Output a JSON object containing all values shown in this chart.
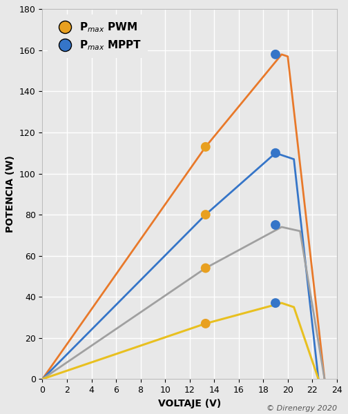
{
  "title": "",
  "xlabel": "VOLTAJE (V)",
  "ylabel": "POTENCIA (W)",
  "xlim": [
    0,
    24
  ],
  "ylim": [
    0,
    180
  ],
  "xticks": [
    0,
    2,
    4,
    6,
    8,
    10,
    12,
    14,
    16,
    18,
    20,
    22,
    24
  ],
  "yticks": [
    0,
    20,
    40,
    60,
    80,
    100,
    120,
    140,
    160,
    180
  ],
  "background_color": "#e8e8e8",
  "axes_facecolor": "#e8e8e8",
  "grid_color": "#ffffff",
  "curve_orange": {
    "x": [
      0,
      13.3,
      19.5,
      20.0,
      23.0
    ],
    "y": [
      0,
      113,
      158,
      157,
      0
    ],
    "color": "#e8792a",
    "linewidth": 2.0
  },
  "curve_blue": {
    "x": [
      0,
      13.3,
      19.0,
      20.5,
      22.5
    ],
    "y": [
      0,
      80,
      110,
      107,
      0
    ],
    "color": "#3575c8",
    "linewidth": 2.0
  },
  "curve_gray": {
    "x": [
      0,
      13.3,
      19.5,
      21.0,
      23.0
    ],
    "y": [
      0,
      54,
      74,
      72,
      0
    ],
    "color": "#a0a0a0",
    "linewidth": 2.0
  },
  "curve_yellow": {
    "x": [
      0,
      13.3,
      19.5,
      20.5,
      22.5
    ],
    "y": [
      0,
      27,
      37,
      35,
      0
    ],
    "color": "#e8c020",
    "linewidth": 2.2
  },
  "pwm_points": {
    "x": [
      13.3,
      13.3,
      13.3,
      13.3
    ],
    "y": [
      113,
      80,
      54,
      27
    ],
    "color": "#e8a020",
    "markersize": 10
  },
  "mppt_points": {
    "x": [
      19.0,
      19.0,
      19.0,
      19.0
    ],
    "y": [
      158,
      110,
      75,
      37
    ],
    "color": "#3575c8",
    "markersize": 10
  },
  "legend_pwm_color": "#e8a020",
  "legend_mppt_color": "#3575c8",
  "legend_pwm_label": "P$_{max}$ PWM",
  "legend_mppt_label": "P$_{max}$ MPPT",
  "copyright_text": "© Direnergy 2020",
  "font_size_axes": 10,
  "font_size_ticks": 9,
  "font_size_legend": 11,
  "font_size_copyright": 8
}
